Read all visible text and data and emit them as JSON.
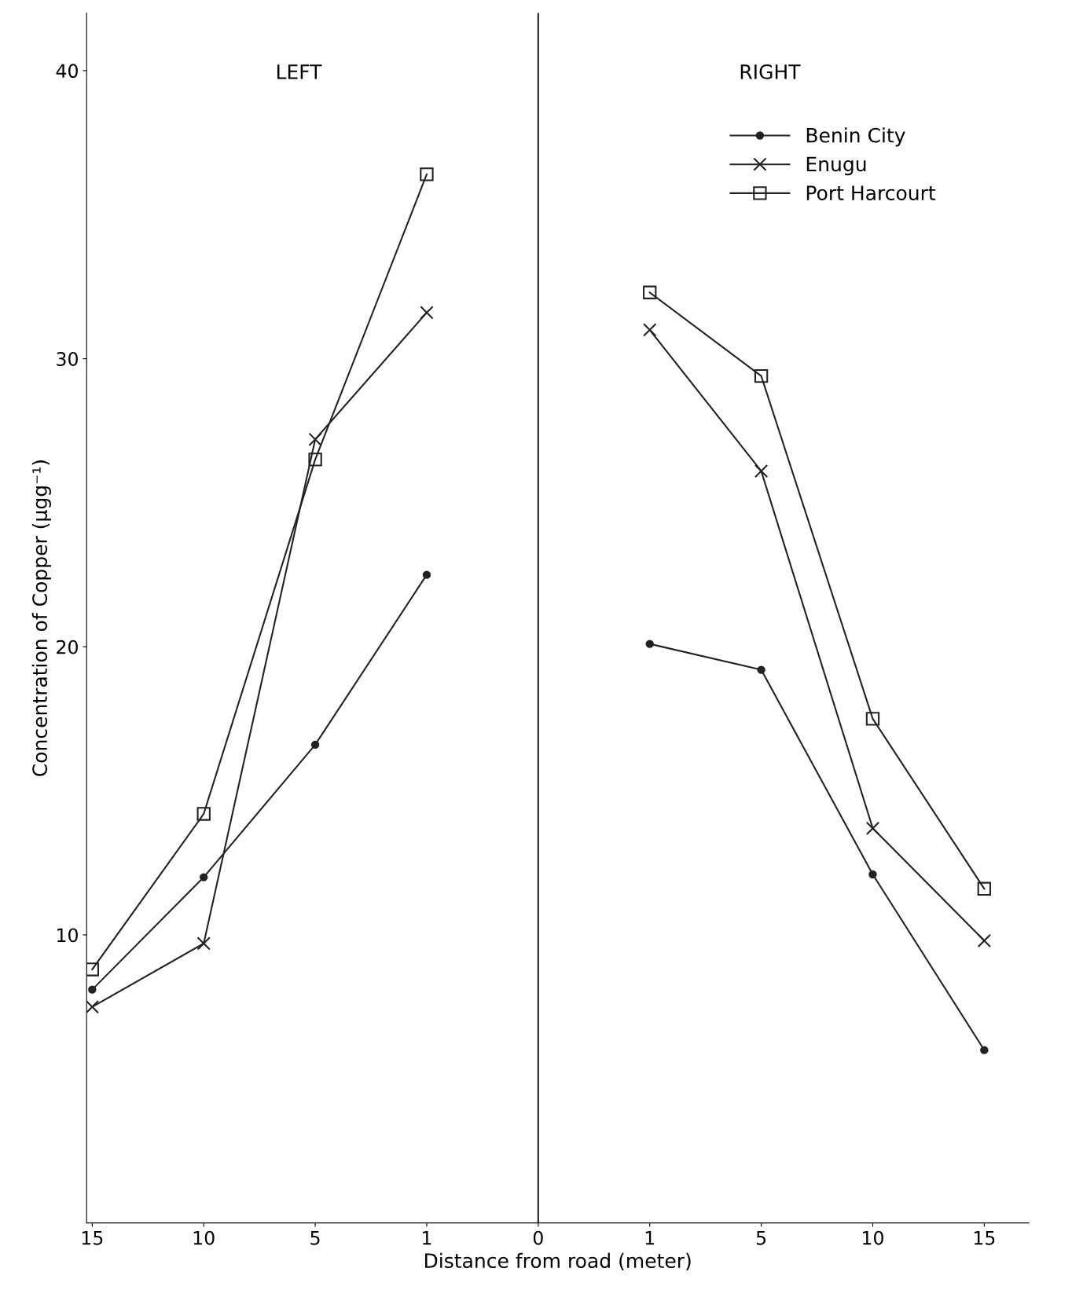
{
  "chart_data": {
    "type": "line",
    "xlabel": "Distance from road (meter)",
    "ylabel": "Concentration of Copper (µgg⁻¹)",
    "categories": [
      "15",
      "10",
      "5",
      "1",
      "0",
      "1",
      "5",
      "10",
      "15"
    ],
    "ylim": [
      0,
      42
    ],
    "yticks": [
      10,
      20,
      30,
      40
    ],
    "grid": false,
    "legend": "top right",
    "series": [
      {
        "name": "Benin City",
        "color": "#222222",
        "marker": "circle",
        "values": [
          8.1,
          12.0,
          16.6,
          22.5,
          null,
          20.1,
          19.2,
          12.1,
          6.0
        ]
      },
      {
        "name": "Enugu",
        "color": "#222222",
        "marker": "cross",
        "values": [
          7.5,
          9.7,
          27.2,
          31.6,
          null,
          31.0,
          26.1,
          13.7,
          9.8
        ]
      },
      {
        "name": "Port Harcourt",
        "color": "#222222",
        "marker": "square",
        "values": [
          8.8,
          14.2,
          26.5,
          36.4,
          null,
          32.3,
          29.4,
          17.5,
          11.6
        ]
      }
    ],
    "ref_lines": [
      {
        "axis": "x",
        "value": "0",
        "color": "#222222",
        "line_style": "solid"
      }
    ],
    "annotations": [
      "LEFT",
      "RIGHT"
    ]
  }
}
